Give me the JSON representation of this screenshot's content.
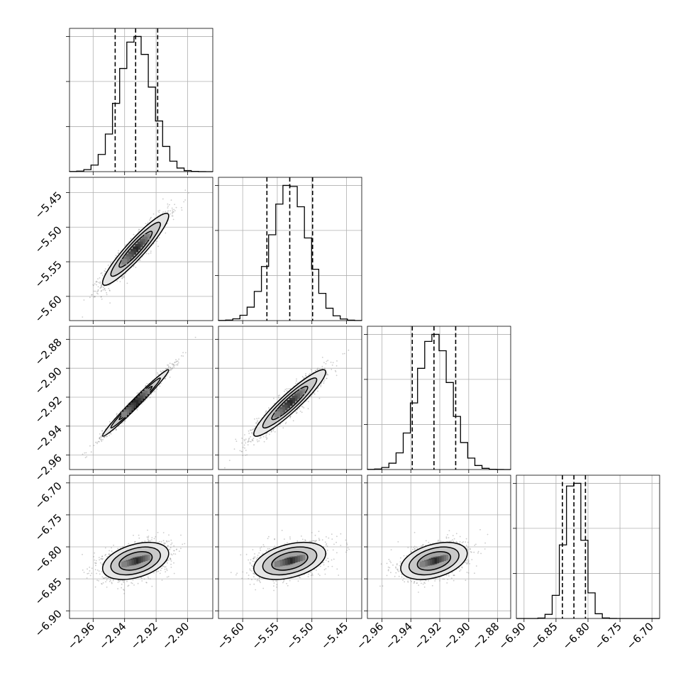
{
  "chart_data": {
    "type": "corner",
    "title": "",
    "parameters": [
      {
        "name": "",
        "range": [
          -2.975,
          -2.884
        ],
        "ticks": [
          -2.96,
          -2.94,
          -2.92,
          -2.9
        ],
        "tick_labels": [
          "−2.96",
          "−2.94",
          "−2.92",
          "−2.90"
        ],
        "mean": -2.933,
        "sd": 0.0105,
        "quantiles": [
          -2.946,
          -2.933,
          -2.919
        ]
      },
      {
        "name": "",
        "range": [
          -5.635,
          -5.428
        ],
        "ticks": [
          -5.6,
          -5.55,
          -5.5,
          -5.45
        ],
        "tick_labels": [
          "−5.60",
          "−5.55",
          "−5.50",
          "−5.45"
        ],
        "mean": -5.532,
        "sd": 0.026,
        "quantiles": [
          -5.565,
          -5.532,
          -5.499
        ]
      },
      {
        "name": "",
        "range": [
          -2.97,
          -2.871
        ],
        "ticks": [
          -2.96,
          -2.94,
          -2.92,
          -2.9,
          -2.88
        ],
        "tick_labels": [
          "−2.96",
          "−2.94",
          "−2.92",
          "−2.90",
          "−2.88"
        ],
        "mean": -2.924,
        "sd": 0.0115,
        "quantiles": [
          -2.939,
          -2.924,
          -2.909
        ]
      },
      {
        "name": "",
        "range": [
          -6.912,
          -6.688
        ],
        "ticks": [
          -6.9,
          -6.85,
          -6.8,
          -6.75,
          -6.7
        ],
        "tick_labels": [
          "−6.90",
          "−6.85",
          "−6.80",
          "−6.75",
          "−6.70"
        ],
        "mean": -6.822,
        "sd": 0.0145,
        "quantiles": [
          -6.84,
          -6.822,
          -6.804
        ]
      }
    ],
    "correlations": [
      [
        1.0,
        0.93,
        0.985,
        0.4
      ],
      [
        0.93,
        1.0,
        0.93,
        0.4
      ],
      [
        0.985,
        0.93,
        1.0,
        0.4
      ],
      [
        0.4,
        0.4,
        0.4,
        1.0
      ]
    ],
    "hist_bins": 20,
    "contour_levels": [
      0.5,
      1.0,
      1.5,
      2.0
    ],
    "grid": true,
    "colors": {
      "line": "#000000",
      "points": "#8c8c8c",
      "grid": "#b0b0b0",
      "background": "#ffffff"
    }
  }
}
